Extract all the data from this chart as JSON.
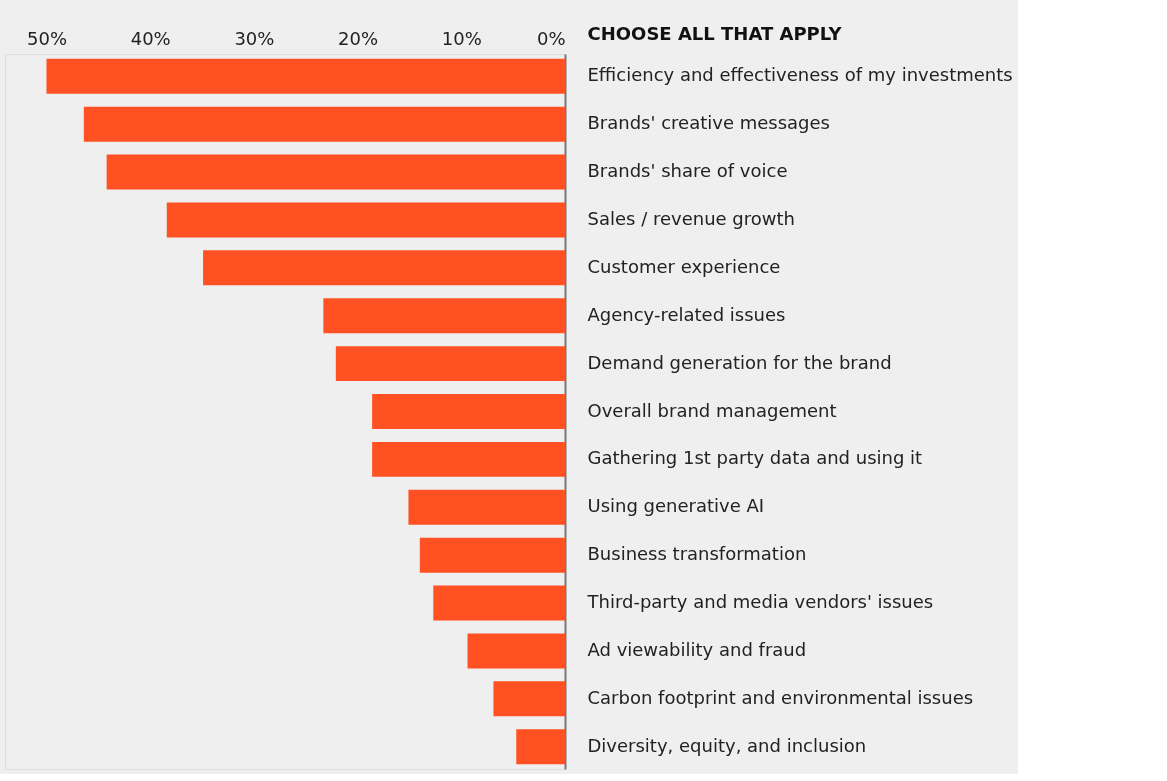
{
  "chart_data": {
    "type": "bar",
    "orientation": "horizontal",
    "title": "CHOOSE ALL THAT APPLY",
    "categories": [
      "Efficiency and effectiveness of my investments",
      "Brands' creative messages",
      "Brands' share of voice",
      "Sales / revenue growth",
      "Customer experience",
      "Agency-related issues",
      "Demand generation for the brand",
      "Overall brand management",
      "Gathering 1st party data and using it",
      "Using generative AI",
      "Business transformation",
      "Third-party and media vendors' issues",
      "Ad viewability and fraud",
      "Carbon footprint and environmental issues",
      "Diversity, equity, and inclusion"
    ],
    "values": [
      50.0,
      46.4,
      44.2,
      38.4,
      34.9,
      23.3,
      22.1,
      18.6,
      18.6,
      15.1,
      14.0,
      12.7,
      9.4,
      6.9,
      4.7
    ],
    "color": "#ff5122",
    "xlim": [
      54,
      0
    ],
    "xticks": [
      {
        "value": 50,
        "label": "50%"
      },
      {
        "value": 40,
        "label": "40%"
      },
      {
        "value": 30,
        "label": "30%"
      },
      {
        "value": 20,
        "label": "20%"
      },
      {
        "value": 10,
        "label": "10%"
      },
      {
        "value": 0,
        "label": "0%"
      }
    ],
    "grid": false
  }
}
